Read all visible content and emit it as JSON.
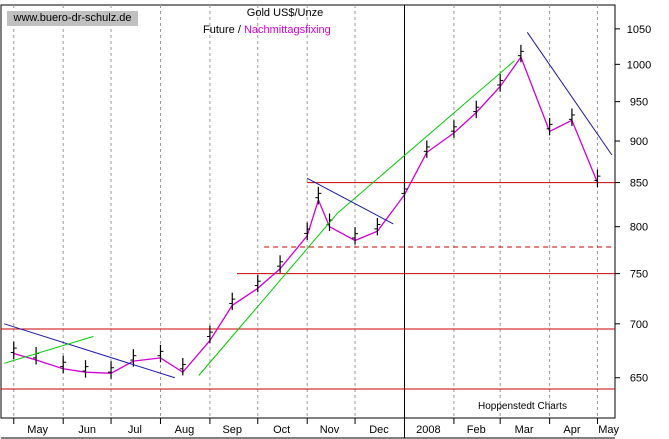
{
  "watermark": "www.buero-dr-schulz.de",
  "chart_data": {
    "type": "line",
    "title": "Gold US$/Unze",
    "legend_prefix": "Future /",
    "series": [
      {
        "name": "Future",
        "style": "ohlc bars",
        "color": "#000000",
        "x": [
          "2007-05-01",
          "2007-05-15",
          "2007-06-01",
          "2007-06-15",
          "2007-07-01",
          "2007-07-15",
          "2007-08-01",
          "2007-08-15",
          "2007-09-01",
          "2007-09-15",
          "2007-10-01",
          "2007-10-15",
          "2007-11-01",
          "2007-11-08",
          "2007-11-15",
          "2007-12-01",
          "2007-12-15",
          "2008-01-01",
          "2008-01-15",
          "2008-02-01",
          "2008-02-15",
          "2008-03-01",
          "2008-03-14",
          "2008-04-01",
          "2008-04-15",
          "2008-05-01"
        ],
        "values": [
          675,
          670,
          662,
          658,
          657,
          668,
          672,
          660,
          690,
          722,
          740,
          760,
          795,
          835,
          805,
          790,
          800,
          840,
          890,
          915,
          940,
          975,
          1015,
          918,
          930,
          855
        ]
      },
      {
        "name": "Nachmittagsfixing",
        "style": "line",
        "color": "#d400d4",
        "x": [
          "2007-05-01",
          "2007-05-15",
          "2007-06-01",
          "2007-06-15",
          "2007-07-01",
          "2007-07-15",
          "2007-08-01",
          "2007-08-15",
          "2007-09-01",
          "2007-09-15",
          "2007-10-01",
          "2007-10-15",
          "2007-11-01",
          "2007-11-08",
          "2007-11-15",
          "2007-12-01",
          "2007-12-15",
          "2008-01-01",
          "2008-01-15",
          "2008-02-01",
          "2008-02-15",
          "2008-03-01",
          "2008-03-14",
          "2008-04-01",
          "2008-04-15",
          "2008-05-01"
        ],
        "values": [
          672,
          666,
          658,
          655,
          654,
          665,
          668,
          655,
          684,
          718,
          735,
          755,
          790,
          830,
          800,
          785,
          795,
          836,
          886,
          910,
          936,
          970,
          1010,
          912,
          926,
          850
        ]
      }
    ],
    "hlines": [
      {
        "value": 850,
        "color": "#cc0000",
        "style": "solid"
      },
      {
        "value": 778,
        "color": "#cc0000",
        "style": "dashed"
      },
      {
        "value": 750,
        "color": "#cc0000",
        "style": "solid"
      },
      {
        "value": 695,
        "color": "#cc0000",
        "style": "solid"
      },
      {
        "value": 640,
        "color": "#cc0000",
        "style": "solid"
      }
    ],
    "trendlines": [
      {
        "color": "#1a1aaa",
        "from": {
          "x": "2007-04-25",
          "y": 700
        },
        "to": {
          "x": "2007-08-10",
          "y": 650
        }
      },
      {
        "color": "#00cc00",
        "from": {
          "x": "2007-04-25",
          "y": 663
        },
        "to": {
          "x": "2007-06-20",
          "y": 688
        }
      },
      {
        "color": "#00cc00",
        "from": {
          "x": "2007-08-25",
          "y": 652
        },
        "to": {
          "x": "2007-11-20",
          "y": 815
        }
      },
      {
        "color": "#00cc00",
        "from": {
          "x": "2007-11-20",
          "y": 815
        },
        "to": {
          "x": "2008-03-10",
          "y": 1005
        }
      },
      {
        "color": "#1a1aaa",
        "from": {
          "x": "2007-11-01",
          "y": 855
        },
        "to": {
          "x": "2007-12-25",
          "y": 803
        }
      },
      {
        "color": "#1a1aaa",
        "from": {
          "x": "2008-03-18",
          "y": 1045
        },
        "to": {
          "x": "2008-05-10",
          "y": 883
        }
      }
    ],
    "y_ticks": [
      650,
      700,
      750,
      800,
      850,
      900,
      950,
      1000,
      1050
    ],
    "ylim": [
      615,
      1085
    ],
    "y_scale": "log",
    "x_ticks": [
      "May",
      "Jun",
      "Jul",
      "Aug",
      "Sep",
      "Oct",
      "Nov",
      "Dec",
      "2008",
      "Feb",
      "Mar",
      "Apr",
      "May"
    ],
    "x_range": [
      "2007-04-23",
      "2008-05-12"
    ],
    "grid": true,
    "source": "Hoppenstedt Charts"
  }
}
